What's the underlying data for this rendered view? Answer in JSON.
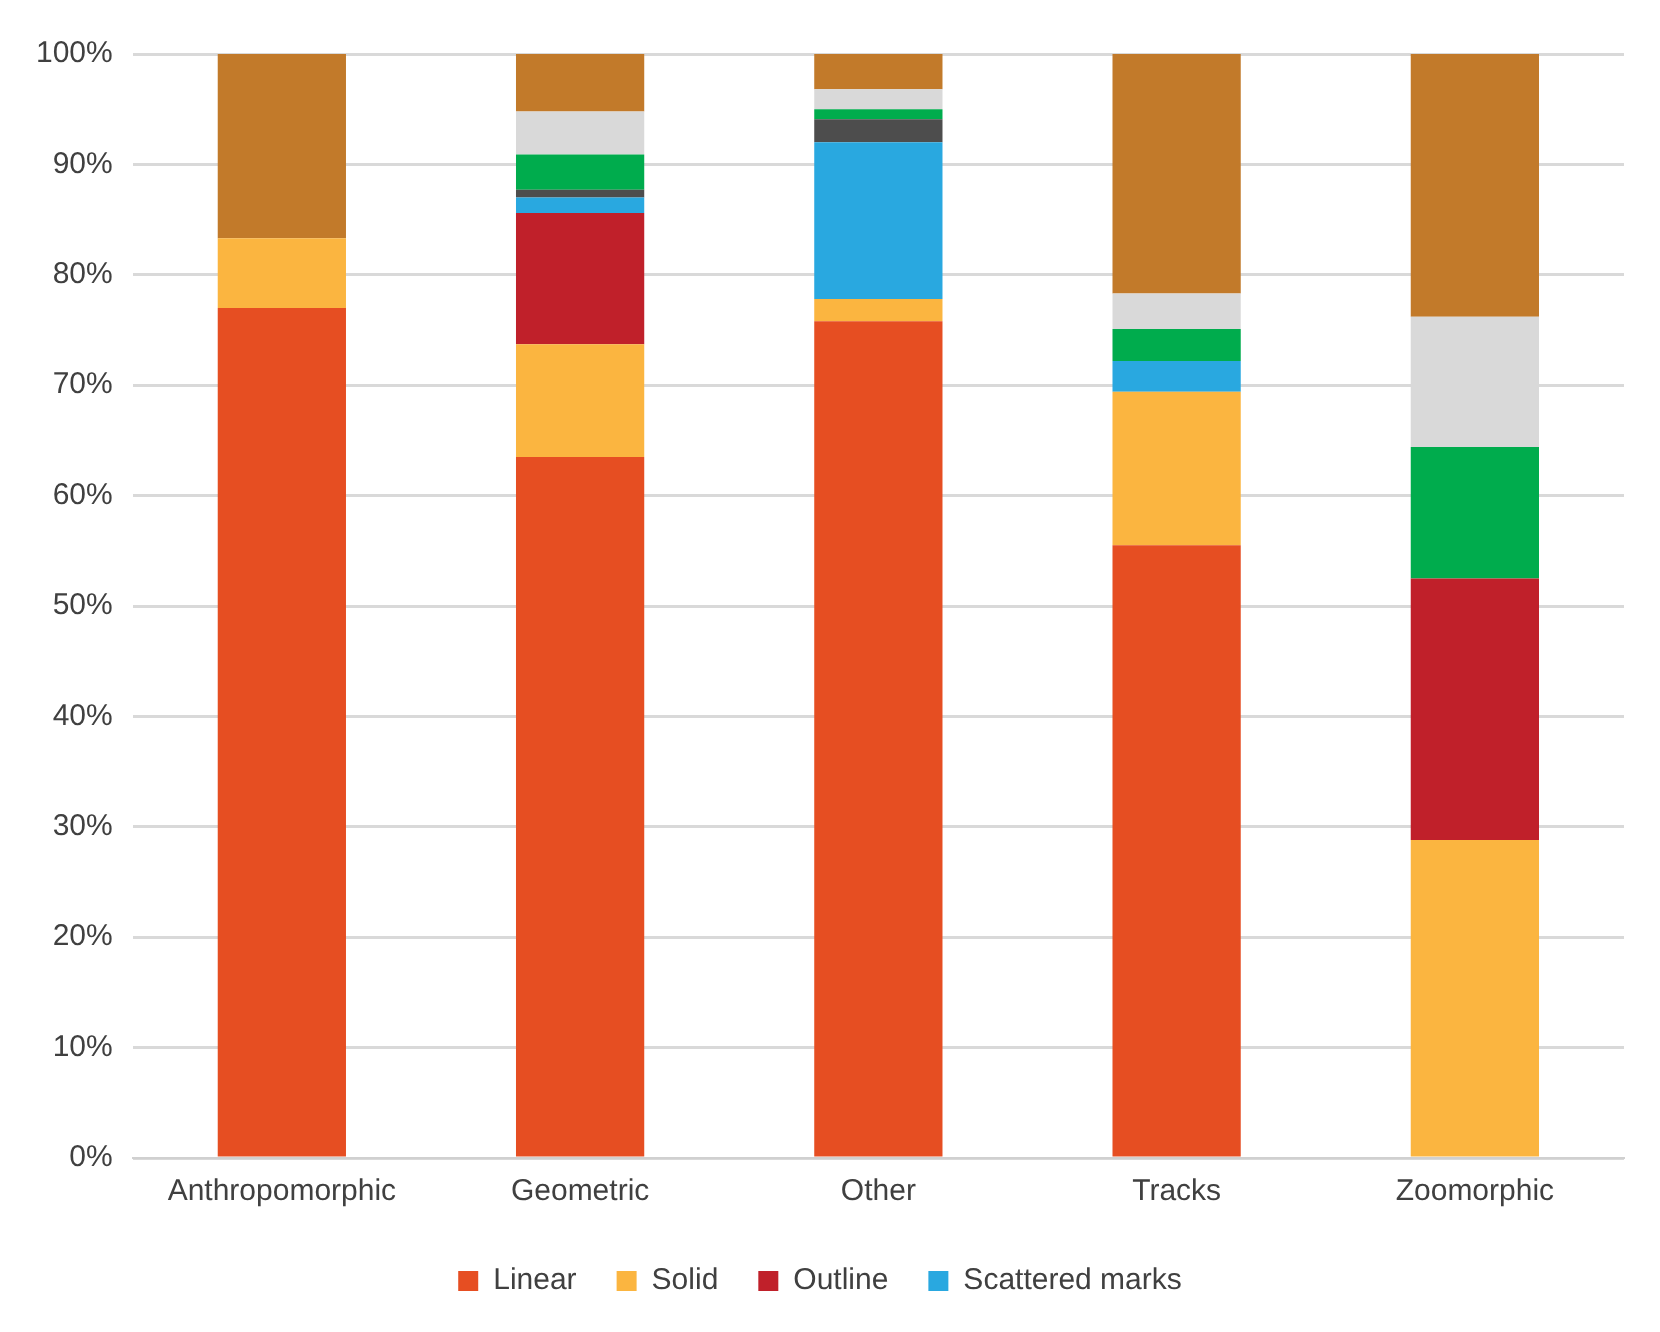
{
  "chart_data": {
    "type": "bar",
    "stacked": true,
    "categories": [
      "Anthropomorphic",
      "Geometric",
      "Other",
      "Tracks",
      "Zoomorphic"
    ],
    "series": [
      {
        "name": "Linear",
        "color": "#e64e22",
        "values": [
          77.0,
          63.5,
          75.8,
          55.5,
          0
        ]
      },
      {
        "name": "Solid",
        "color": "#fbb540",
        "values": [
          6.3,
          10.2,
          2.0,
          13.9,
          28.8
        ]
      },
      {
        "name": "Outline",
        "color": "#c0202a",
        "values": [
          0,
          11.9,
          0,
          0,
          23.7
        ]
      },
      {
        "name": "Scattered marks",
        "color": "#29a8e0",
        "values": [
          0,
          1.4,
          14.2,
          2.8,
          0
        ]
      },
      {
        "color": "#4d4d4d",
        "values": [
          0,
          0.7,
          2.1,
          0,
          0
        ]
      },
      {
        "color": "#00ac4d",
        "values": [
          0,
          3.2,
          0.9,
          2.9,
          11.9
        ]
      },
      {
        "color": "#d9d9d9",
        "values": [
          0,
          3.9,
          1.8,
          3.2,
          11.8
        ]
      },
      {
        "color": "#c27a2a",
        "values": [
          16.7,
          5.2,
          3.2,
          21.7,
          23.8
        ]
      }
    ],
    "ylim": [
      0,
      100
    ],
    "yticks": [
      {
        "value": 0,
        "label": "0%"
      },
      {
        "value": 10,
        "label": "10%"
      },
      {
        "value": 20,
        "label": "20%"
      },
      {
        "value": 30,
        "label": "30%"
      },
      {
        "value": 40,
        "label": "40%"
      },
      {
        "value": 50,
        "label": "50%"
      },
      {
        "value": 60,
        "label": "60%"
      },
      {
        "value": 70,
        "label": "70%"
      },
      {
        "value": 80,
        "label": "80%"
      },
      {
        "value": 90,
        "label": "90%"
      },
      {
        "value": 100,
        "label": "100%"
      }
    ],
    "grid": "y",
    "legend": "bottom"
  }
}
